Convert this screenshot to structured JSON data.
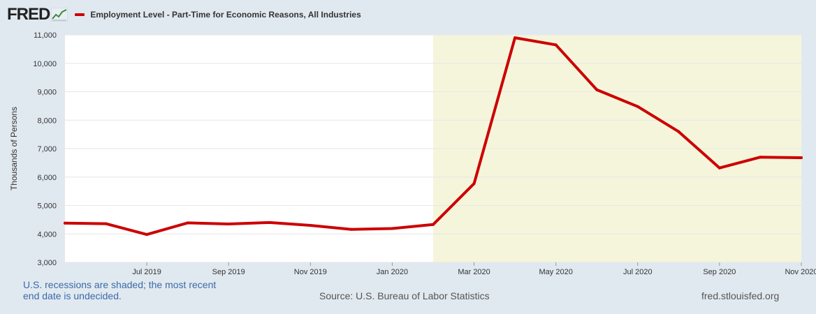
{
  "header": {
    "logo_text": "FRED",
    "logo_icon": "line-chart-icon"
  },
  "colors": {
    "series": "#cc0000",
    "recession_shade": "#f5f5dc",
    "plot_bg": "#ffffff",
    "page_bg": "#e1e9f0",
    "note_text": "#3a6aa8"
  },
  "footer": {
    "recession_note": "U.S. recessions are shaded; the most recent end date is undecided.",
    "source": "Source: U.S. Bureau of Labor Statistics",
    "site": "fred.stlouisfed.org"
  },
  "chart_data": {
    "type": "line",
    "title": "",
    "xlabel": "",
    "ylabel": "Thousands of Persons",
    "ylim": [
      3000,
      11000
    ],
    "yticks": [
      3000,
      4000,
      5000,
      6000,
      7000,
      8000,
      9000,
      10000,
      11000
    ],
    "ytick_labels": [
      "3,000",
      "4,000",
      "5,000",
      "6,000",
      "7,000",
      "8,000",
      "9,000",
      "10,000",
      "11,000"
    ],
    "xlim": [
      "2019-05",
      "2020-11"
    ],
    "xtick_labels": [
      {
        "month": "2019-07",
        "label": "Jul 2019"
      },
      {
        "month": "2019-09",
        "label": "Sep 2019"
      },
      {
        "month": "2019-11",
        "label": "Nov 2019"
      },
      {
        "month": "2020-01",
        "label": "Jan 2020"
      },
      {
        "month": "2020-03",
        "label": "Mar 2020"
      },
      {
        "month": "2020-05",
        "label": "May 2020"
      },
      {
        "month": "2020-07",
        "label": "Jul 2020"
      },
      {
        "month": "2020-09",
        "label": "Sep 2020"
      },
      {
        "month": "2020-11",
        "label": "Nov 2020"
      }
    ],
    "grid": true,
    "legend_position": "top-left",
    "recession_shading": [
      {
        "start": "2020-02",
        "end": "2020-11"
      }
    ],
    "series": [
      {
        "name": "Employment Level - Part-Time for Economic Reasons, All Industries",
        "color": "#cc0000",
        "x": [
          "2019-05",
          "2019-06",
          "2019-07",
          "2019-08",
          "2019-09",
          "2019-10",
          "2019-11",
          "2019-12",
          "2020-01",
          "2020-02",
          "2020-03",
          "2020-04",
          "2020-05",
          "2020-06",
          "2020-07",
          "2020-08",
          "2020-09",
          "2020-10",
          "2020-11"
        ],
        "values": [
          4380,
          4360,
          3980,
          4390,
          4350,
          4400,
          4300,
          4160,
          4190,
          4330,
          5770,
          10900,
          10650,
          9070,
          8480,
          7600,
          6320,
          6700,
          6680
        ]
      }
    ]
  }
}
